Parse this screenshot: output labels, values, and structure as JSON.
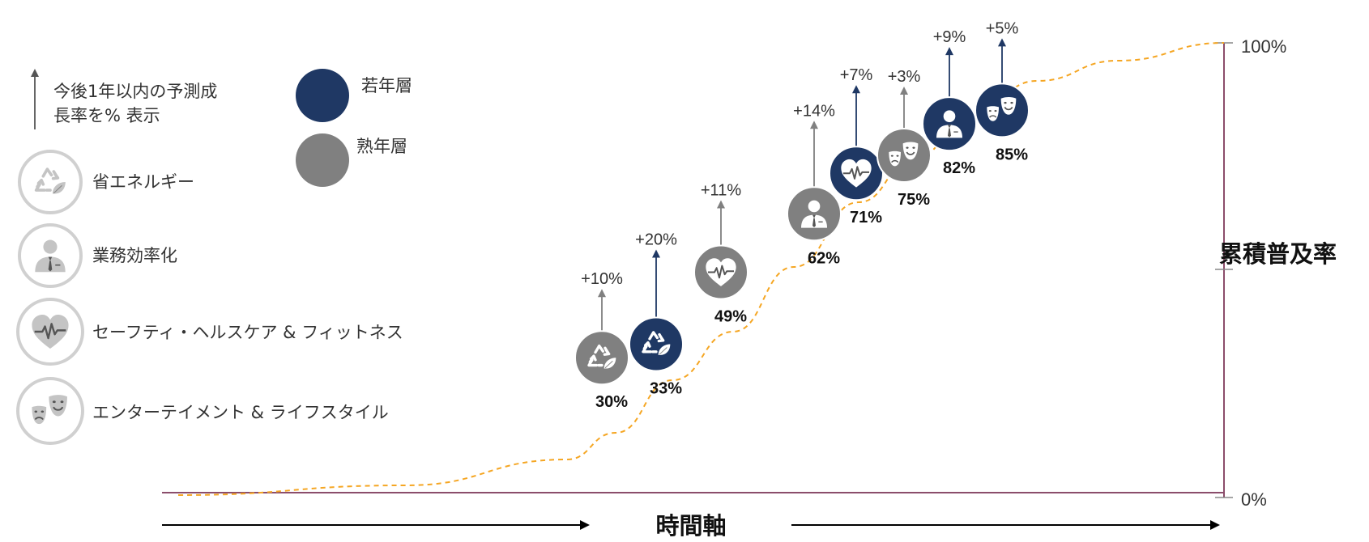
{
  "chart_data": {
    "type": "scatter",
    "xlabel": "時間軸",
    "ylabel": "累積普及率",
    "y_ticks": [
      "0%",
      "100%"
    ],
    "ylim": [
      0,
      100
    ],
    "grid": false,
    "legend_position": "top-left",
    "growth_note": "今後1年以内の予測成長率を% 表示",
    "growth_note_lines": [
      "今後1年以内の予測成",
      "長率を% 表示"
    ],
    "groups": [
      {
        "key": "young",
        "name": "若年層",
        "color": "#1f3864"
      },
      {
        "key": "mature",
        "name": "熟年層",
        "color": "#808080"
      }
    ],
    "categories": [
      {
        "key": "energy",
        "name": "省エネルギー",
        "icon": "recycle-leaf-icon"
      },
      {
        "key": "business",
        "name": "業務効率化",
        "icon": "businessman-icon"
      },
      {
        "key": "health",
        "name": "セーフティ・ヘルスケア & フィットネス",
        "icon": "heart-pulse-icon"
      },
      {
        "key": "entertainment",
        "name": "エンターテイメント & ライフスタイル",
        "icon": "theater-masks-icon"
      }
    ],
    "points": [
      {
        "category": "energy",
        "group": "mature",
        "value": 30,
        "label": "30%",
        "growth": "+10%"
      },
      {
        "category": "energy",
        "group": "young",
        "value": 33,
        "label": "33%",
        "growth": "+20%"
      },
      {
        "category": "health",
        "group": "mature",
        "value": 49,
        "label": "49%",
        "growth": "+11%"
      },
      {
        "category": "business",
        "group": "mature",
        "value": 62,
        "label": "62%",
        "growth": "+14%"
      },
      {
        "category": "health",
        "group": "young",
        "value": 71,
        "label": "71%",
        "growth": "+7%"
      },
      {
        "category": "entertainment",
        "group": "mature",
        "value": 75,
        "label": "75%",
        "growth": "+3%"
      },
      {
        "category": "business",
        "group": "young",
        "value": 82,
        "label": "82%",
        "growth": "+9%"
      },
      {
        "category": "entertainment",
        "group": "young",
        "value": 85,
        "label": "85%",
        "growth": "+5%"
      }
    ],
    "colors": {
      "curve": "#f5a623",
      "axis": "#8b4d6b",
      "legend_icon": "#c8c8c8"
    }
  }
}
